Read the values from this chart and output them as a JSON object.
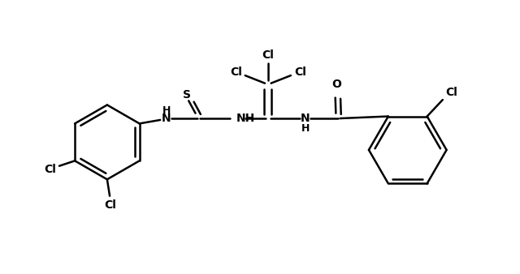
{
  "bg_color": "#ffffff",
  "line_color": "#000000",
  "line_width": 1.8,
  "font_size": 10,
  "font_weight": "bold",
  "figsize": [
    6.4,
    3.38
  ],
  "dpi": 100,
  "xlim": [
    0,
    10
  ],
  "ylim": [
    0,
    5.3
  ]
}
